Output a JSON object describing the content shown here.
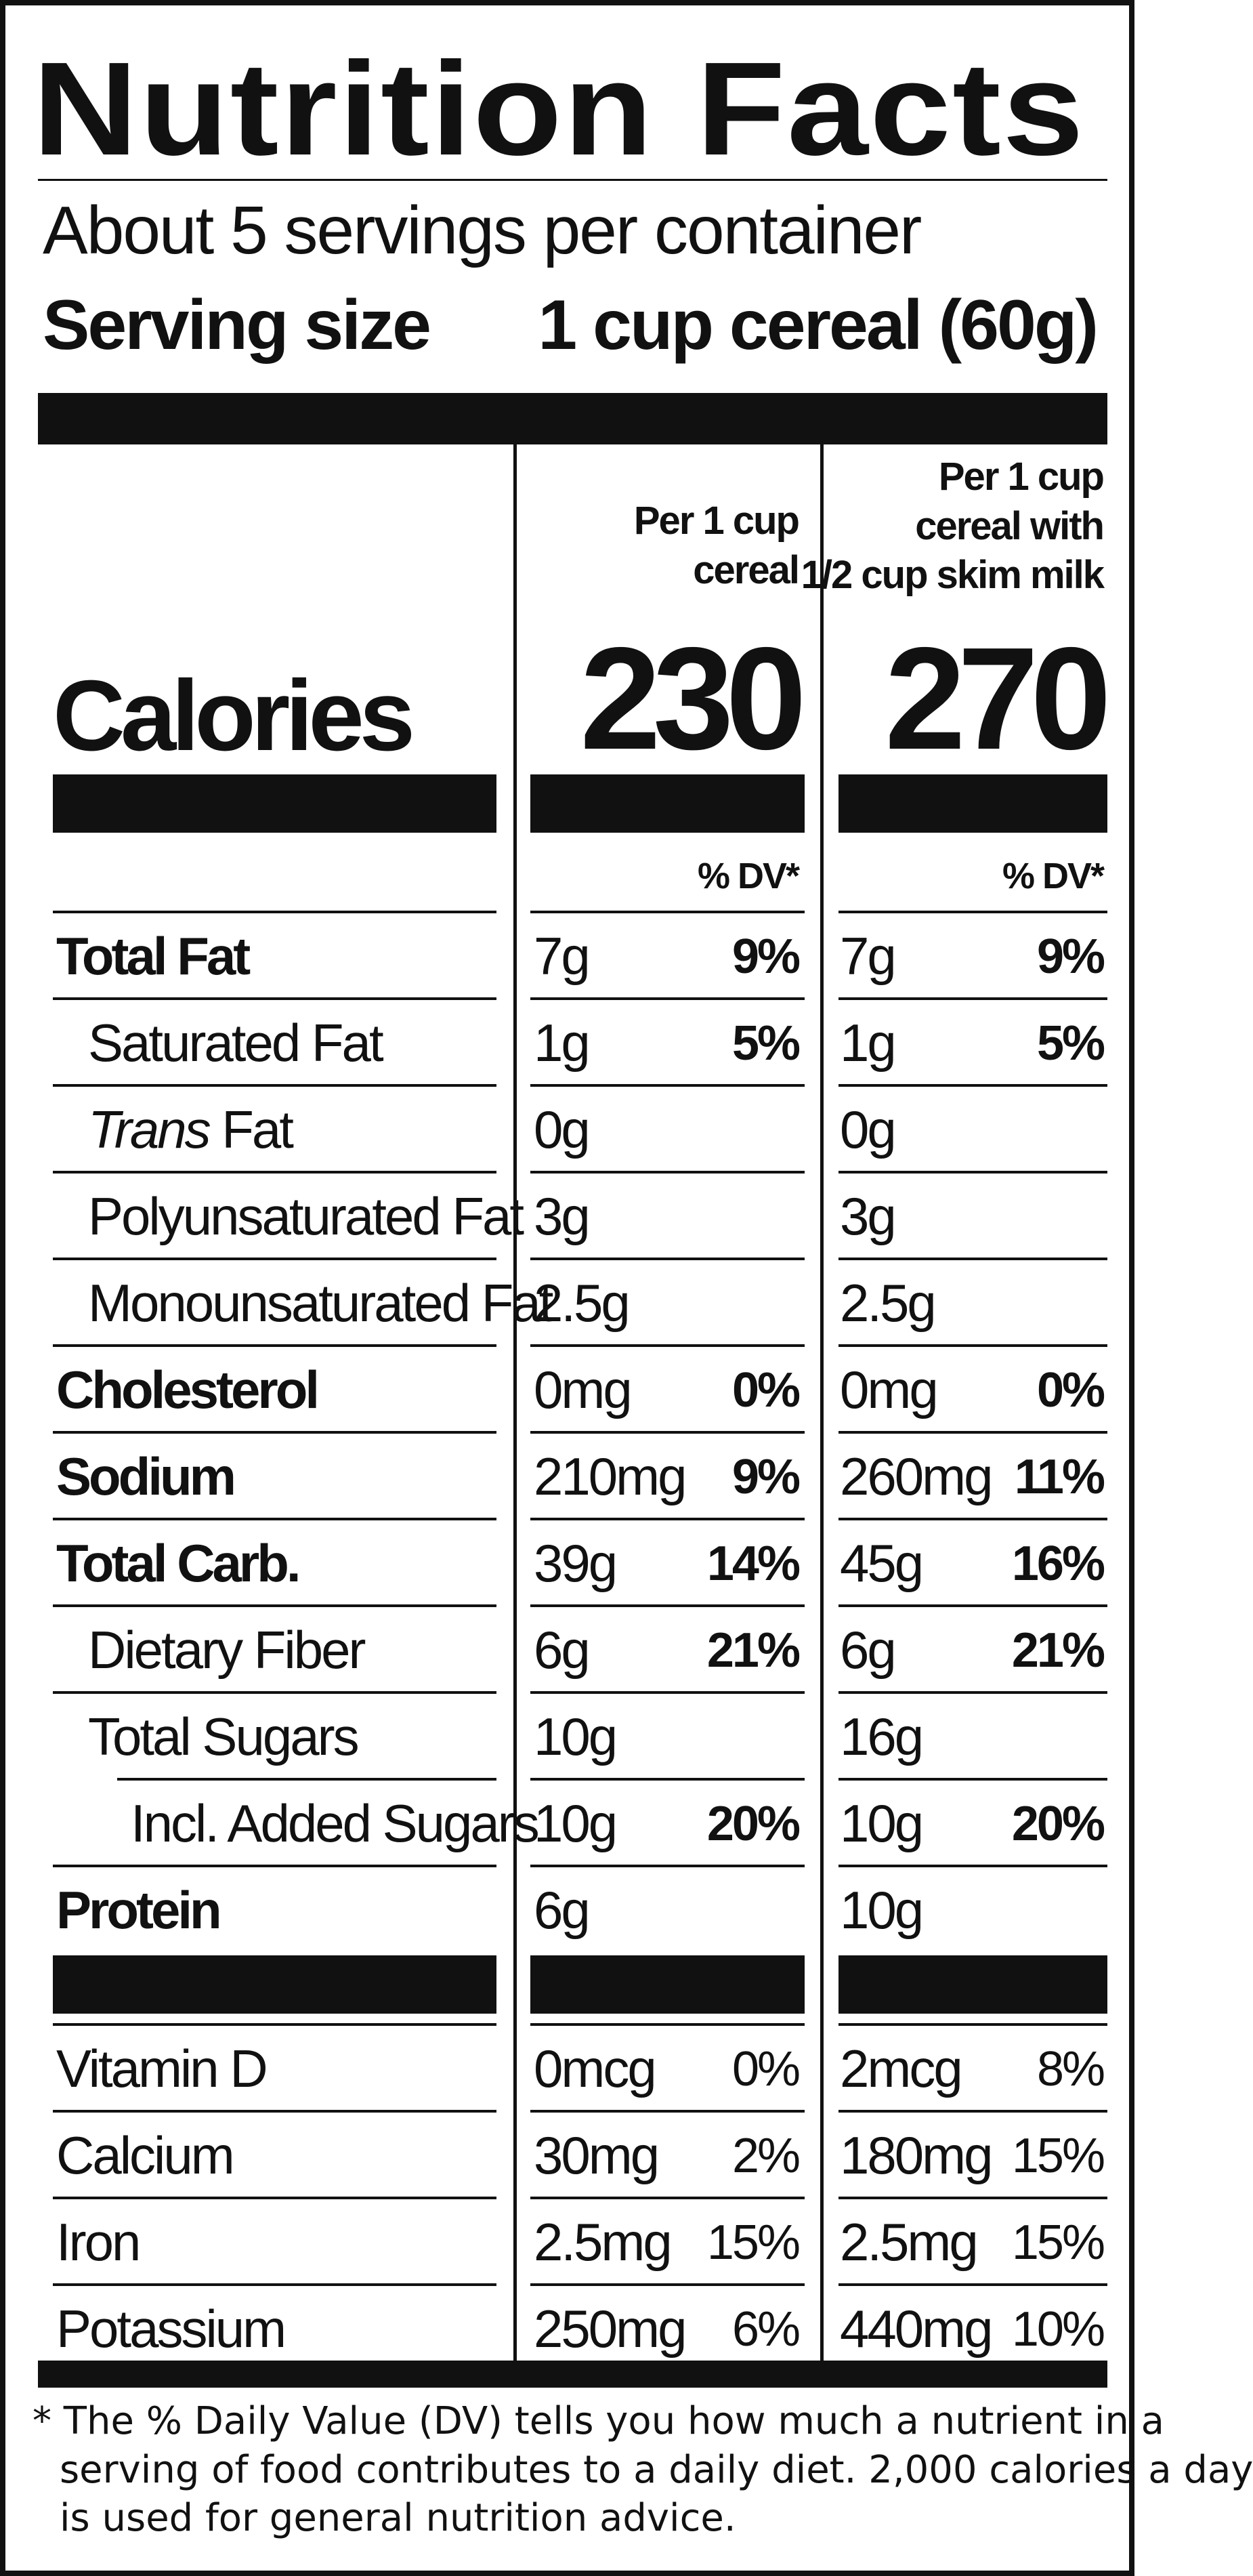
{
  "label": {
    "title": "Nutrition Facts",
    "servings_per_container": "About 5 servings per container",
    "serving_size_label": "Serving size",
    "serving_size_value": "1 cup cereal (60g)",
    "columns": [
      {
        "header_lines": [
          "Per 1 cup",
          "cereal"
        ]
      },
      {
        "header_lines": [
          "Per 1 cup",
          "cereal with",
          "1/2 cup skim milk"
        ]
      }
    ],
    "calories_label": "Calories",
    "calories": [
      "230",
      "270"
    ],
    "dv_header": "% DV*",
    "nutrients": [
      {
        "name": "Total Fat",
        "bold": true,
        "amounts": [
          "7g",
          "7g"
        ],
        "dv": [
          "9%",
          "9%"
        ]
      },
      {
        "name": "Saturated Fat",
        "indent": 1,
        "amounts": [
          "1g",
          "1g"
        ],
        "dv": [
          "5%",
          "5%"
        ]
      },
      {
        "name": "Trans",
        "name_suffix": " Fat",
        "italic": true,
        "indent": 1,
        "amounts": [
          "0g",
          "0g"
        ],
        "dv": [
          "",
          ""
        ]
      },
      {
        "name": "Polyunsaturated Fat",
        "indent": 1,
        "amounts": [
          "3g",
          "3g"
        ],
        "dv": [
          "",
          ""
        ]
      },
      {
        "name": "Monounsaturated Fat",
        "indent": 1,
        "amounts": [
          "2.5g",
          "2.5g"
        ],
        "dv": [
          "",
          ""
        ]
      },
      {
        "name": "Cholesterol",
        "bold": true,
        "amounts": [
          "0mg",
          "0mg"
        ],
        "dv": [
          "0%",
          "0%"
        ]
      },
      {
        "name": "Sodium",
        "bold": true,
        "amounts": [
          "210mg",
          "260mg"
        ],
        "dv": [
          "9%",
          "11%"
        ]
      },
      {
        "name": "Total Carb.",
        "bold": true,
        "amounts": [
          "39g",
          "45g"
        ],
        "dv": [
          "14%",
          "16%"
        ]
      },
      {
        "name": "Dietary Fiber",
        "indent": 1,
        "amounts": [
          "6g",
          "6g"
        ],
        "dv": [
          "21%",
          "21%"
        ]
      },
      {
        "name": "Total Sugars",
        "indent": 1,
        "amounts": [
          "10g",
          "16g"
        ],
        "dv": [
          "",
          ""
        ]
      },
      {
        "name": "Incl. Added Sugars",
        "indent": 2,
        "amounts": [
          "10g",
          "10g"
        ],
        "dv": [
          "20%",
          "20%"
        ]
      },
      {
        "name": "Protein",
        "bold": true,
        "amounts": [
          "6g",
          "10g"
        ],
        "dv": [
          "",
          ""
        ]
      }
    ],
    "vitamins": [
      {
        "name": "Vitamin D",
        "amounts": [
          "0mcg",
          "2mcg"
        ],
        "dv": [
          "0%",
          "8%"
        ]
      },
      {
        "name": "Calcium",
        "amounts": [
          "30mg",
          "180mg"
        ],
        "dv": [
          "2%",
          "15%"
        ]
      },
      {
        "name": "Iron",
        "amounts": [
          "2.5mg",
          "2.5mg"
        ],
        "dv": [
          "15%",
          "15%"
        ]
      },
      {
        "name": "Potassium",
        "amounts": [
          "250mg",
          "440mg"
        ],
        "dv": [
          "6%",
          "10%"
        ]
      }
    ],
    "footnote_lines": [
      "* The % Daily Value (DV) tells you how much a nutrient in a",
      "serving of food contributes to a daily diet. 2,000 calories a day",
      "is used for general nutrition advice."
    ]
  }
}
